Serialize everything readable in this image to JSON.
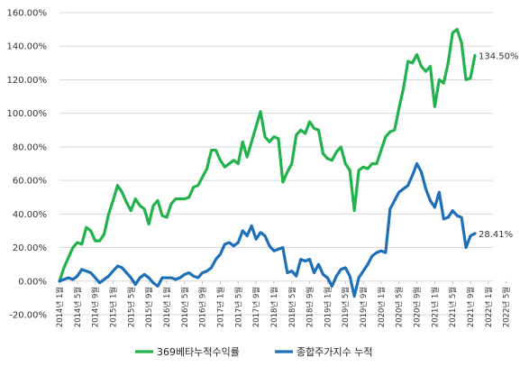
{
  "chart_data": {
    "type": "line",
    "y_unit": "%",
    "ylim": [
      -20,
      160
    ],
    "y_ticks": [
      "-20.00%",
      "0.00%",
      "20.00%",
      "40.00%",
      "60.00%",
      "80.00%",
      "100.00%",
      "120.00%",
      "140.00%",
      "160.00%"
    ],
    "x_tick_labels": [
      "2014년 1월",
      "2014년 5월",
      "2014년 9월",
      "2015년 1월",
      "2015년 5월",
      "2015년 9월",
      "2016년 1월",
      "2016년 5월",
      "2016년 9월",
      "2017년 1월",
      "2017년 5월",
      "2017년 9월",
      "2018년 1월",
      "2018년 5월",
      "2018년 9월",
      "2019년 1월",
      "2019년 5월",
      "2019년 9월",
      "2020년 1월",
      "2020년 5월",
      "2020년 9월",
      "2021년 1월",
      "2021년 5월",
      "2021년 9월",
      "2022년 1월",
      "2022년 5월"
    ],
    "grid": "horizontal",
    "legend_position": "bottom",
    "series": [
      {
        "name": "369베타누적수익률",
        "color": "#21b24b",
        "end_label": "134.50%",
        "values": [
          0,
          8,
          14,
          20,
          23,
          22,
          32,
          30,
          24,
          24,
          28,
          40,
          48,
          57,
          53,
          47,
          42,
          49,
          45,
          43,
          34,
          45,
          48,
          39,
          38,
          46,
          49,
          49,
          49,
          50,
          56,
          57,
          62,
          67,
          78,
          78,
          72,
          68,
          70,
          72,
          70,
          83,
          74,
          83,
          92,
          101,
          86,
          83,
          86,
          85,
          59,
          65,
          70,
          87,
          90,
          88,
          95,
          91,
          90,
          76,
          73,
          72,
          77,
          80,
          70,
          66,
          42,
          66,
          68,
          67,
          70,
          70,
          78,
          86,
          89,
          90,
          103,
          115,
          131,
          130,
          135,
          128,
          125,
          128,
          104,
          120,
          118,
          130,
          148,
          150,
          142,
          120,
          121,
          134.5
        ]
      },
      {
        "name": "종합주가지수 누적",
        "color": "#1d6fb8",
        "end_label": "28.41%",
        "values": [
          0,
          1,
          2,
          1,
          3,
          7,
          6,
          5,
          2,
          -1,
          1,
          3,
          6,
          9,
          8,
          5,
          2,
          -2,
          2,
          4,
          2,
          -1,
          -3,
          2,
          2,
          2,
          1,
          2,
          4,
          5,
          3,
          2,
          5,
          6,
          8,
          13,
          16,
          22,
          23,
          21,
          23,
          30,
          27,
          33,
          25,
          29,
          27,
          21,
          18,
          19,
          20,
          5,
          6,
          3,
          13,
          12,
          13,
          5,
          10,
          4,
          2,
          -3,
          3,
          7,
          8,
          3,
          -9,
          2,
          6,
          10,
          15,
          17,
          18,
          17,
          43,
          48,
          53,
          55,
          57,
          63,
          70,
          65,
          55,
          48,
          44,
          53,
          37,
          38,
          42,
          39,
          38,
          20,
          27,
          28.41
        ]
      }
    ]
  }
}
